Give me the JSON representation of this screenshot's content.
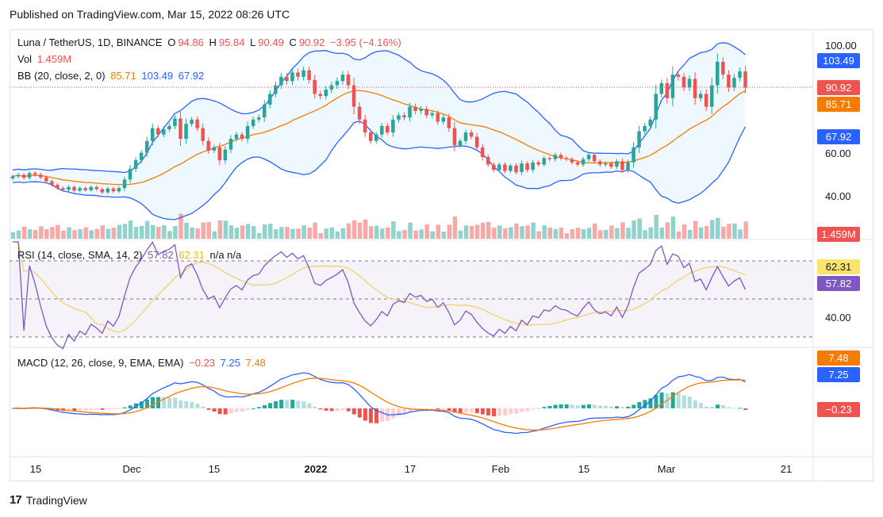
{
  "header": {
    "published": "Published on TradingView.com, Mar 15, 2022 08:26 UTC"
  },
  "footer": {
    "brand": "TradingView"
  },
  "legend": {
    "symbol": "Luna / TetherUS, 1D, BINANCE",
    "o_label": "O",
    "o_value": "94.86",
    "h_label": "H",
    "h_value": "95.84",
    "l_label": "L",
    "l_value": "90.49",
    "c_label": "C",
    "c_value": "90.92",
    "change": "−3.95 (−4.16%)",
    "vol_label": "Vol",
    "vol_value": "1.459M",
    "bb_label": "BB (20, close, 2, 0)",
    "bb_basis": "85.71",
    "bb_upper": "103.49",
    "bb_lower": "67.92",
    "rsi_label": "RSI (14, close, SMA, 14, 2)",
    "rsi_value": "57.82",
    "rsi_ma": "62.31",
    "rsi_na": "n/a  n/a",
    "macd_label": "MACD (12, 26, close, 9, EMA, EMA)",
    "macd_hist": "−0.23",
    "macd_line": "7.25",
    "macd_signal": "7.48"
  },
  "price_axis": {
    "ticks": [
      "100.00",
      "60.00",
      "40.00"
    ],
    "labels": {
      "upper": "103.49",
      "close": "90.92",
      "basis": "85.71",
      "lower": "67.92",
      "volume": "1.459M"
    }
  },
  "rsi_axis": {
    "ticks": [
      "40.00"
    ],
    "labels": {
      "ma": "62.31",
      "rsi": "57.82"
    }
  },
  "macd_axis": {
    "labels": {
      "signal": "7.48",
      "macd": "7.25",
      "hist": "−0.23"
    }
  },
  "time_axis": {
    "ticks": [
      "15",
      "Dec",
      "15",
      "2022",
      "17",
      "Feb",
      "15",
      "Mar",
      "21"
    ]
  },
  "colors": {
    "up": "#26a69a",
    "down": "#ef5350",
    "bb_upper": "#2962ff",
    "bb_basis": "#f57c00",
    "rsi": "#7e57c2",
    "rsi_ma": "#f0d060",
    "macd": "#2962ff",
    "signal": "#f57c00"
  },
  "chart_data": {
    "type": "candlestick",
    "symbol": "LUNA/USDT",
    "interval": "1D",
    "dates": "2021-11-08 to 2022-03-15",
    "close": [
      49.5,
      50.2,
      48.8,
      51.0,
      50.3,
      49.0,
      47.2,
      45.5,
      44.0,
      43.2,
      44.5,
      42.8,
      44.0,
      43.0,
      44.5,
      43.5,
      42.0,
      43.8,
      42.5,
      44.0,
      48.0,
      53.0,
      57.0,
      60.5,
      66.0,
      72.0,
      69.0,
      71.5,
      73.0,
      76.5,
      67.0,
      74.0,
      76.0,
      72.0,
      66.0,
      61.5,
      63.0,
      57.0,
      62.0,
      67.0,
      69.0,
      67.0,
      73.0,
      76.0,
      77.0,
      83.0,
      88.0,
      92.0,
      96.0,
      94.0,
      98.0,
      96.0,
      99.0,
      94.5,
      88.0,
      87.0,
      90.0,
      92.0,
      94.0,
      97.0,
      92.0,
      82.0,
      76.0,
      70.0,
      66.0,
      69.0,
      73.0,
      70.0,
      76.0,
      78.0,
      77.0,
      82.0,
      80.0,
      81.0,
      78.0,
      79.0,
      75.0,
      77.0,
      72.0,
      64.0,
      66.0,
      70.0,
      68.0,
      63.0,
      58.5,
      55.0,
      52.5,
      55.0,
      52.0,
      54.5,
      51.5,
      55.5,
      52.5,
      56.0,
      55.0,
      58.0,
      57.5,
      59.5,
      58.0,
      57.5,
      56.0,
      55.0,
      57.5,
      59.5,
      56.5,
      55.0,
      55.5,
      54.0,
      56.5,
      52.5,
      56.0,
      63.0,
      70.5,
      73.0,
      76.0,
      88.0,
      93.0,
      86.0,
      97.0,
      96.0,
      91.0,
      95.0,
      86.0,
      88.0,
      82.0,
      92.0,
      103.0,
      97.0,
      91.0,
      95.5,
      98.5,
      90.9
    ],
    "bollinger": {
      "length": 20,
      "basis_last": 85.71,
      "upper_last": 103.49,
      "lower_last": 67.92
    },
    "volume_last": "1.459M",
    "rsi": {
      "length": 14,
      "last": 57.82,
      "ma_last": 62.31,
      "bands": [
        70,
        50,
        30
      ]
    },
    "macd": {
      "fast": 12,
      "slow": 26,
      "signal": 9,
      "macd_last": 7.25,
      "signal_last": 7.48,
      "hist_last": -0.23
    }
  }
}
